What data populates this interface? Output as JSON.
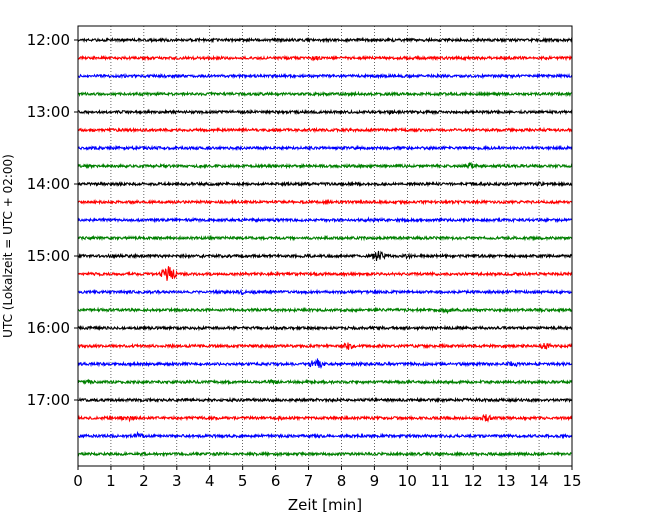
{
  "chart_data": {
    "type": "line",
    "xlabel": "Zeit  [min]",
    "ylabel": "UTC (Lokalzeit = UTC + 02:00)",
    "xlim": [
      0,
      15
    ],
    "x_ticks": [
      "0",
      "1",
      "2",
      "3",
      "4",
      "5",
      "6",
      "7",
      "8",
      "9",
      "10",
      "11",
      "12",
      "13",
      "14",
      "15"
    ],
    "y_ticks": [
      "12:00",
      "13:00",
      "14:00",
      "15:00",
      "16:00",
      "17:00"
    ],
    "grid": "vertical-dotted",
    "trace_colors": [
      "#000000",
      "#ff0000",
      "#0000ff",
      "#008000"
    ],
    "trace_start_times": [
      "12:00",
      "12:15",
      "12:30",
      "12:45",
      "13:00",
      "13:15",
      "13:30",
      "13:45",
      "14:00",
      "14:15",
      "14:30",
      "14:45",
      "15:00",
      "15:15",
      "15:30",
      "15:45",
      "16:00",
      "16:15",
      "16:30",
      "16:45",
      "17:00",
      "17:15",
      "17:30",
      "17:45"
    ],
    "events": [
      {
        "trace": 0,
        "minute": 9.6,
        "amplitude": 1.8
      },
      {
        "trace": 0,
        "minute": 12.6,
        "amplitude": 1.6
      },
      {
        "trace": 1,
        "minute": 7.2,
        "amplitude": 2.6
      },
      {
        "trace": 3,
        "minute": 4.9,
        "amplitude": 1.6
      },
      {
        "trace": 4,
        "minute": 9.5,
        "amplitude": 2.4
      },
      {
        "trace": 5,
        "minute": 3.9,
        "amplitude": 1.6
      },
      {
        "trace": 6,
        "minute": 9.1,
        "amplitude": 1.4
      },
      {
        "trace": 7,
        "minute": 11.9,
        "amplitude": 3.8
      },
      {
        "trace": 8,
        "minute": 14.0,
        "amplitude": 2.2
      },
      {
        "trace": 10,
        "minute": 8.9,
        "amplitude": 2.4
      },
      {
        "trace": 11,
        "minute": 4.7,
        "amplitude": 1.6
      },
      {
        "trace": 12,
        "minute": 9.1,
        "amplitude": 6.0
      },
      {
        "trace": 12,
        "minute": 10.0,
        "amplitude": 2.6
      },
      {
        "trace": 13,
        "minute": 2.75,
        "amplitude": 8.0
      },
      {
        "trace": 14,
        "minute": 5.0,
        "amplitude": 2.6
      },
      {
        "trace": 14,
        "minute": 5.8,
        "amplitude": 2.6
      },
      {
        "trace": 15,
        "minute": 11.2,
        "amplitude": 2.8
      },
      {
        "trace": 17,
        "minute": 8.2,
        "amplitude": 4.0
      },
      {
        "trace": 17,
        "minute": 14.2,
        "amplitude": 3.6
      },
      {
        "trace": 18,
        "minute": 7.25,
        "amplitude": 6.0
      },
      {
        "trace": 18,
        "minute": 13.2,
        "amplitude": 3.6
      },
      {
        "trace": 19,
        "minute": 0.3,
        "amplitude": 2.2
      },
      {
        "trace": 19,
        "minute": 5.9,
        "amplitude": 3.0
      },
      {
        "trace": 20,
        "minute": 7.8,
        "amplitude": 3.2
      },
      {
        "trace": 21,
        "minute": 1.5,
        "amplitude": 3.8
      },
      {
        "trace": 21,
        "minute": 6.1,
        "amplitude": 2.2
      },
      {
        "trace": 21,
        "minute": 12.4,
        "amplitude": 3.8
      },
      {
        "trace": 22,
        "minute": 1.8,
        "amplitude": 3.4
      }
    ]
  }
}
